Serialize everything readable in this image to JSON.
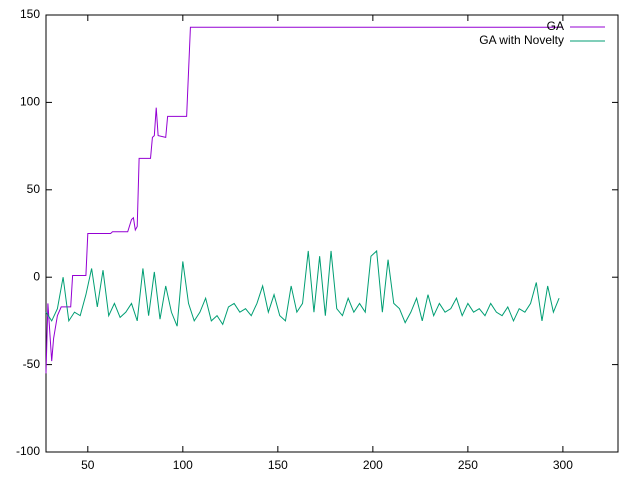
{
  "chart_data": {
    "type": "line",
    "xlim": [
      28,
      329
    ],
    "xticks": [
      50,
      100,
      150,
      200,
      250,
      300
    ],
    "ylim": [
      -100,
      150
    ],
    "yticks": [
      -100,
      -50,
      0,
      50,
      100,
      150
    ],
    "legend": "top-right",
    "series": [
      {
        "name": "GA",
        "color": "#9400d3",
        "x": [
          28,
          29,
          31,
          32,
          34,
          36,
          41,
          42,
          49,
          50,
          62,
          63,
          71,
          73,
          74,
          75,
          76,
          77,
          83,
          84,
          85,
          86,
          87,
          91,
          92,
          102,
          104,
          300
        ],
        "values": [
          -55,
          -15,
          -48,
          -35,
          -22,
          -17,
          -17,
          1,
          1,
          25,
          25,
          26,
          26,
          33,
          34,
          27,
          29,
          68,
          68,
          80,
          81,
          97,
          81,
          80,
          92,
          92,
          143,
          143
        ]
      },
      {
        "name": "GA with Novelty",
        "color": "#009e73",
        "x": [
          28,
          31,
          34,
          37,
          40,
          43,
          46,
          49,
          52,
          55,
          58,
          61,
          64,
          67,
          70,
          73,
          76,
          79,
          82,
          85,
          88,
          91,
          94,
          97,
          100,
          103,
          106,
          109,
          112,
          115,
          118,
          121,
          124,
          127,
          130,
          133,
          136,
          139,
          142,
          145,
          148,
          151,
          154,
          157,
          160,
          163,
          166,
          169,
          172,
          175,
          178,
          181,
          184,
          187,
          190,
          193,
          196,
          199,
          202,
          205,
          208,
          211,
          214,
          217,
          220,
          223,
          226,
          229,
          232,
          235,
          238,
          241,
          244,
          247,
          250,
          253,
          256,
          259,
          262,
          265,
          268,
          271,
          274,
          277,
          280,
          283,
          286,
          289,
          292,
          295,
          298
        ],
        "values": [
          -20,
          -25,
          -18,
          0,
          -25,
          -20,
          -22,
          -10,
          5,
          -17,
          4,
          -22,
          -15,
          -23,
          -20,
          -15,
          -25,
          5,
          -22,
          3,
          -24,
          -5,
          -20,
          -28,
          9,
          -15,
          -25,
          -20,
          -12,
          -25,
          -22,
          -27,
          -17,
          -15,
          -20,
          -18,
          -22,
          -15,
          -5,
          -20,
          -10,
          -22,
          -25,
          -5,
          -20,
          -15,
          15,
          -20,
          12,
          -22,
          15,
          -18,
          -22,
          -12,
          -20,
          -15,
          -20,
          12,
          15,
          -20,
          10,
          -15,
          -18,
          -26,
          -20,
          -12,
          -25,
          -10,
          -22,
          -15,
          -20,
          -18,
          -12,
          -22,
          -15,
          -20,
          -18,
          -22,
          -15,
          -20,
          -22,
          -17,
          -25,
          -18,
          -20,
          -15,
          -3,
          -25,
          -5,
          -20,
          -12
        ]
      }
    ]
  }
}
